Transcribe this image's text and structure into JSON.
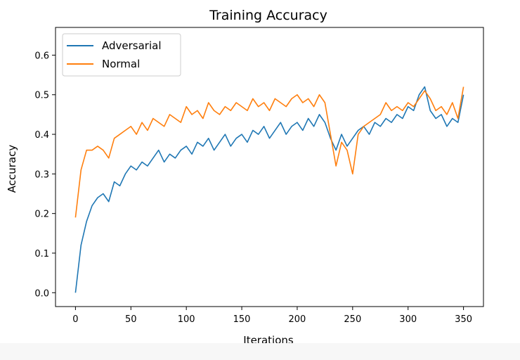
{
  "chart_data": {
    "type": "line",
    "title": "Training Accuracy",
    "xlabel": "Iterations",
    "ylabel": "Accuracy",
    "xlim": [
      -18,
      368
    ],
    "ylim": [
      -0.035,
      0.67
    ],
    "xticks": [
      0,
      50,
      100,
      150,
      200,
      250,
      300,
      350
    ],
    "yticks": [
      0.0,
      0.1,
      0.2,
      0.3,
      0.4,
      0.5,
      0.6
    ],
    "xtick_labels": [
      "0",
      "50",
      "100",
      "150",
      "200",
      "250",
      "300",
      "350"
    ],
    "ytick_labels": [
      "0.0",
      "0.1",
      "0.2",
      "0.3",
      "0.4",
      "0.5",
      "0.6"
    ],
    "grid": false,
    "legend_position": "upper-left",
    "series": [
      {
        "name": "Adversarial",
        "color": "#1f77b4",
        "x": [
          0,
          5,
          10,
          15,
          20,
          25,
          30,
          35,
          40,
          45,
          50,
          55,
          60,
          65,
          70,
          75,
          80,
          85,
          90,
          95,
          100,
          105,
          110,
          115,
          120,
          125,
          130,
          135,
          140,
          145,
          150,
          155,
          160,
          165,
          170,
          175,
          180,
          185,
          190,
          195,
          200,
          205,
          210,
          215,
          220,
          225,
          230,
          235,
          240,
          245,
          250,
          255,
          260,
          265,
          270,
          275,
          280,
          285,
          290,
          295,
          300,
          305,
          310,
          315,
          320,
          325,
          330,
          335,
          340,
          345,
          350
        ],
        "values": [
          0.0,
          0.12,
          0.18,
          0.22,
          0.24,
          0.25,
          0.23,
          0.28,
          0.27,
          0.3,
          0.32,
          0.31,
          0.33,
          0.32,
          0.34,
          0.36,
          0.33,
          0.35,
          0.34,
          0.36,
          0.37,
          0.35,
          0.38,
          0.37,
          0.39,
          0.36,
          0.38,
          0.4,
          0.37,
          0.39,
          0.4,
          0.38,
          0.41,
          0.4,
          0.42,
          0.39,
          0.41,
          0.43,
          0.4,
          0.42,
          0.43,
          0.41,
          0.44,
          0.42,
          0.45,
          0.43,
          0.39,
          0.36,
          0.4,
          0.37,
          0.39,
          0.41,
          0.42,
          0.4,
          0.43,
          0.42,
          0.44,
          0.43,
          0.45,
          0.44,
          0.47,
          0.46,
          0.5,
          0.52,
          0.46,
          0.44,
          0.45,
          0.42,
          0.44,
          0.43,
          0.5
        ]
      },
      {
        "name": "Normal",
        "color": "#ff7f0e",
        "x": [
          0,
          5,
          10,
          15,
          20,
          25,
          30,
          35,
          40,
          45,
          50,
          55,
          60,
          65,
          70,
          75,
          80,
          85,
          90,
          95,
          100,
          105,
          110,
          115,
          120,
          125,
          130,
          135,
          140,
          145,
          150,
          155,
          160,
          165,
          170,
          175,
          180,
          185,
          190,
          195,
          200,
          205,
          210,
          215,
          220,
          225,
          230,
          235,
          240,
          245,
          250,
          255,
          260,
          265,
          270,
          275,
          280,
          285,
          290,
          295,
          300,
          305,
          310,
          315,
          320,
          325,
          330,
          335,
          340,
          345,
          350
        ],
        "values": [
          0.19,
          0.31,
          0.36,
          0.36,
          0.37,
          0.36,
          0.34,
          0.39,
          0.4,
          0.41,
          0.42,
          0.4,
          0.43,
          0.41,
          0.44,
          0.43,
          0.42,
          0.45,
          0.44,
          0.43,
          0.47,
          0.45,
          0.46,
          0.44,
          0.48,
          0.46,
          0.45,
          0.47,
          0.46,
          0.48,
          0.47,
          0.46,
          0.49,
          0.47,
          0.48,
          0.46,
          0.49,
          0.48,
          0.47,
          0.49,
          0.5,
          0.48,
          0.49,
          0.47,
          0.5,
          0.48,
          0.4,
          0.32,
          0.38,
          0.36,
          0.3,
          0.4,
          0.42,
          0.43,
          0.44,
          0.45,
          0.48,
          0.46,
          0.47,
          0.46,
          0.48,
          0.47,
          0.49,
          0.51,
          0.49,
          0.46,
          0.47,
          0.45,
          0.48,
          0.44,
          0.52
        ]
      }
    ]
  }
}
